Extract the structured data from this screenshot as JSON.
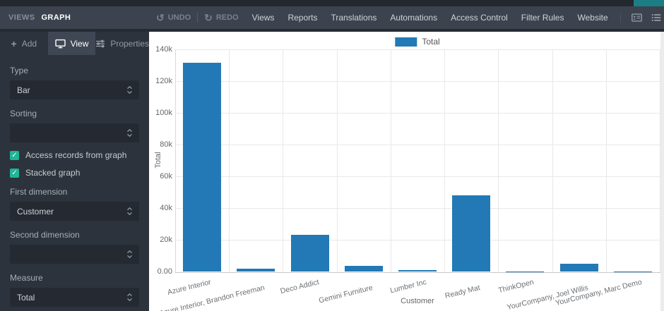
{
  "colors": {
    "accent_teal": "#1b7e84",
    "bar_blue": "#2279b5",
    "checkbox_green": "#1fb697"
  },
  "header": {
    "breadcrumb": [
      "VIEWS",
      "GRAPH"
    ],
    "undo_label": "UNDO",
    "redo_label": "REDO",
    "nav": [
      "Views",
      "Reports",
      "Translations",
      "Automations",
      "Access Control",
      "Filter Rules",
      "Website"
    ],
    "view_icons": [
      {
        "name": "form-view-icon",
        "glyph": "idcard",
        "active": false
      },
      {
        "name": "list-view-icon",
        "glyph": "list",
        "active": false
      },
      {
        "name": "kanban-view-icon",
        "glyph": "kanban",
        "active": false
      },
      {
        "name": "calendar-view-icon",
        "glyph": "calendar",
        "active": false
      },
      {
        "name": "graph-view-icon",
        "glyph": "graph",
        "active": true
      },
      {
        "name": "pivot-view-icon",
        "glyph": "pivot",
        "active": false
      },
      {
        "name": "apps-grid-icon",
        "glyph": "grid",
        "active": false
      },
      {
        "name": "search-icon",
        "glyph": "search",
        "active": false
      }
    ]
  },
  "sidebar": {
    "tabs": [
      {
        "label": "Add",
        "icon": "plus-icon",
        "active": false
      },
      {
        "label": "View",
        "icon": "monitor-icon",
        "active": true
      },
      {
        "label": "Properties",
        "icon": "sliders-icon",
        "active": false
      }
    ],
    "fields": [
      {
        "kind": "select",
        "label": "Type",
        "value": "Bar"
      },
      {
        "kind": "select",
        "label": "Sorting",
        "value": ""
      },
      {
        "kind": "checkbox",
        "label": "Access records from graph",
        "checked": true
      },
      {
        "kind": "checkbox",
        "label": "Stacked graph",
        "checked": true
      },
      {
        "kind": "select",
        "label": "First dimension",
        "value": "Customer"
      },
      {
        "kind": "select",
        "label": "Second dimension",
        "value": ""
      },
      {
        "kind": "select",
        "label": "Measure",
        "value": "Total"
      }
    ]
  },
  "chart_data": {
    "type": "bar",
    "title": "",
    "legend": [
      {
        "label": "Total",
        "color": "#2279b5"
      }
    ],
    "legend_position": "top-center",
    "grid": true,
    "categories": [
      "Azure Interior",
      "Azure Interior, Brandon Freeman",
      "Deco Addict",
      "Gemini Furniture",
      "Lumber Inc",
      "Ready Mat",
      "ThinkOpen",
      "YourCompany, Joel Willis",
      "YourCompany, Marc Demo"
    ],
    "values": [
      131500,
      2100,
      23500,
      3900,
      900,
      48300,
      300,
      5000,
      250
    ],
    "xlabel": "Customer",
    "ylabel": "Total",
    "ylim": [
      0,
      140000
    ],
    "yticks": [
      {
        "value": 0,
        "label": "0.00"
      },
      {
        "value": 20000,
        "label": "20k"
      },
      {
        "value": 40000,
        "label": "40k"
      },
      {
        "value": 60000,
        "label": "60k"
      },
      {
        "value": 80000,
        "label": "80k"
      },
      {
        "value": 100000,
        "label": "100k"
      },
      {
        "value": 120000,
        "label": "120k"
      },
      {
        "value": 140000,
        "label": "140k"
      }
    ]
  }
}
